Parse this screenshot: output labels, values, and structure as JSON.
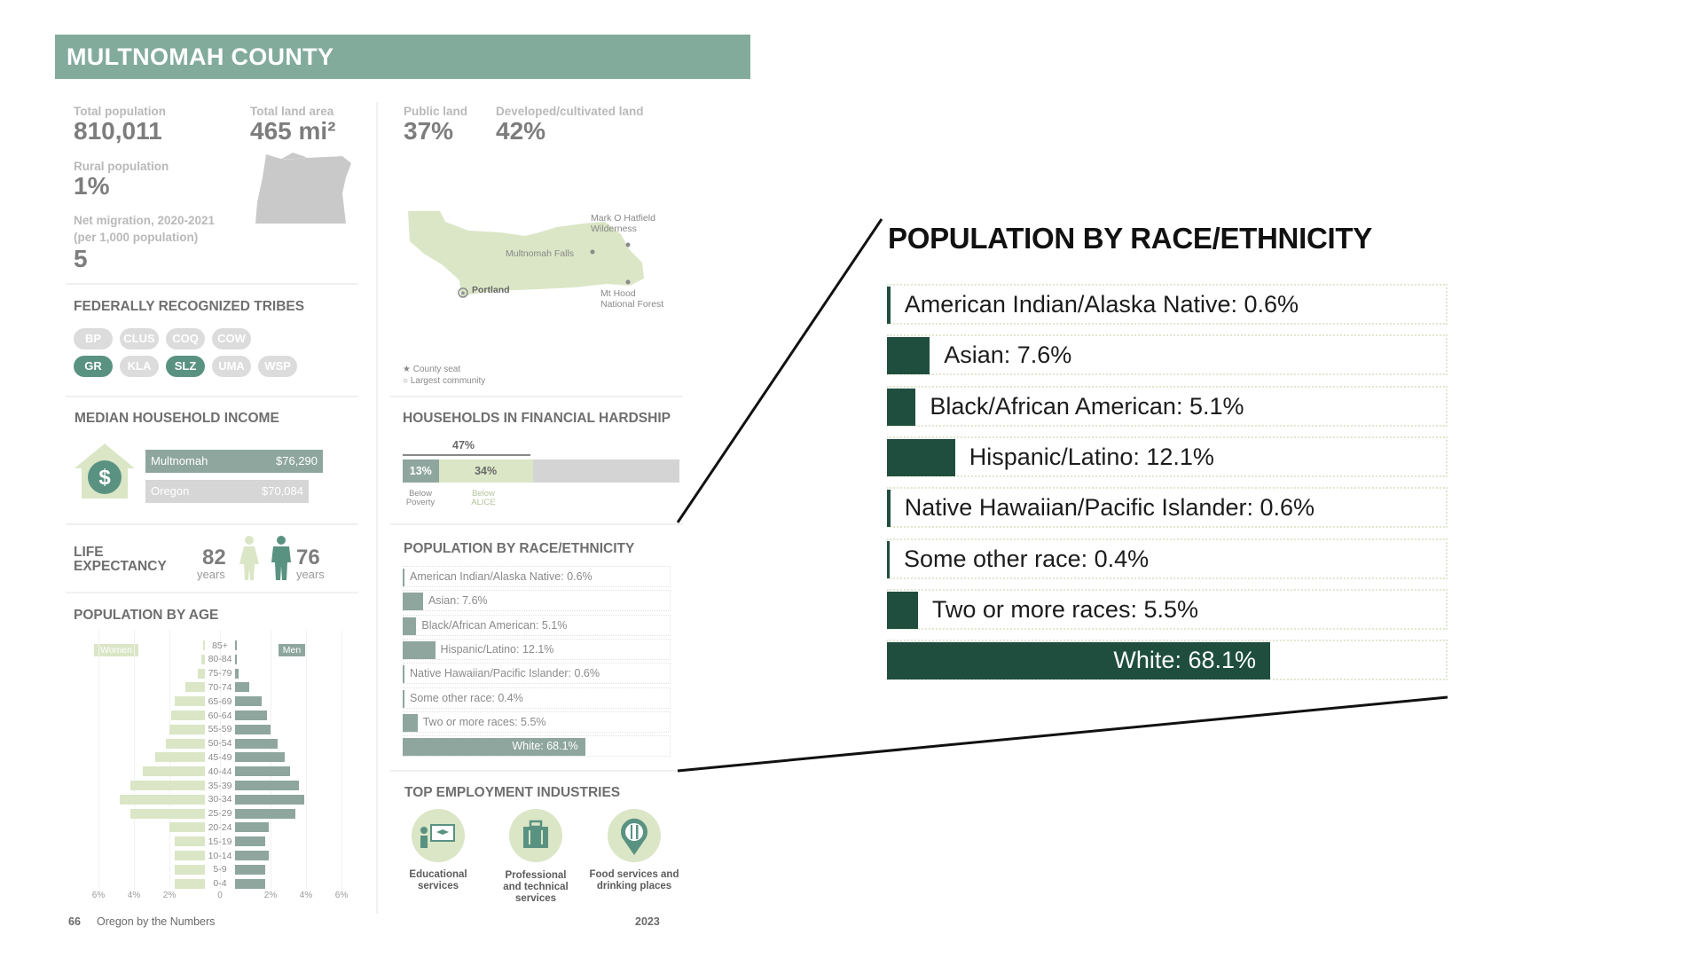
{
  "page": {
    "county_title": "MULTNOMAH COUNTY",
    "footer_page_number": "66",
    "footer_publication": "Oregon by the Numbers",
    "footer_year": "2023"
  },
  "stats": {
    "total_population_label": "Total population",
    "total_population_value": "810,011",
    "total_land_area_label": "Total land area",
    "total_land_area_value": "465 mi²",
    "rural_population_label": "Rural population",
    "rural_population_value": "1%",
    "net_migration_label_line1": "Net migration, 2020-2021",
    "net_migration_label_line2": "(per 1,000 population)",
    "net_migration_value": "5",
    "public_land_label": "Public land",
    "public_land_value": "37%",
    "developed_land_label": "Developed/cultivated land",
    "developed_land_value": "42%"
  },
  "map": {
    "label_wilderness": "Mark O Hatfield Wilderness",
    "label_falls": "Multnomah Falls",
    "label_portland": "Portland",
    "label_mthood_line1": "Mt Hood",
    "label_mthood_line2": "National Forest",
    "legend_county_seat": "County seat",
    "legend_largest_community": "Largest community"
  },
  "tribes": {
    "title": "FEDERALLY RECOGNIZED TRIBES",
    "items": [
      {
        "code": "BP",
        "highlighted": false
      },
      {
        "code": "CLUS",
        "highlighted": false
      },
      {
        "code": "COQ",
        "highlighted": false
      },
      {
        "code": "COW",
        "highlighted": false
      },
      {
        "code": "GR",
        "highlighted": true
      },
      {
        "code": "KLA",
        "highlighted": false
      },
      {
        "code": "SLZ",
        "highlighted": true
      },
      {
        "code": "UMA",
        "highlighted": false
      },
      {
        "code": "WSP",
        "highlighted": false
      }
    ]
  },
  "income": {
    "title": "MEDIAN HOUSEHOLD INCOME",
    "county_name": "Multnomah",
    "county_value": "$76,290",
    "state_name": "Oregon",
    "state_value": "$70,084"
  },
  "hardship": {
    "title": "HOUSEHOLDS IN FINANCIAL HARDSHIP",
    "total_label": "47%",
    "poverty_pct": 13,
    "poverty_label": "13%",
    "alice_pct": 34,
    "alice_label": "34%",
    "poverty_caption_1": "Below",
    "poverty_caption_2": "Poverty",
    "alice_caption_1": "Below",
    "alice_caption_2": "ALICE"
  },
  "life": {
    "title_line1": "LIFE",
    "title_line2": "EXPECTANCY",
    "women_value": "82",
    "women_unit": "years",
    "men_value": "76",
    "men_unit": "years"
  },
  "industries": {
    "title": "TOP EMPLOYMENT INDUSTRIES",
    "items": [
      {
        "line1": "Educational",
        "line2": "services",
        "line3": "",
        "icon": "education-icon"
      },
      {
        "line1": "Professional",
        "line2": "and technical",
        "line3": "services",
        "icon": "briefcase-icon"
      },
      {
        "line1": "Food services and",
        "line2": "drinking places",
        "line3": "",
        "icon": "utensils-icon"
      }
    ]
  },
  "zoom_title": "POPULATION BY RACE/ETHNICITY",
  "chart_data": [
    {
      "type": "bar",
      "title": "POPULATION BY AGE",
      "orientation": "horizontal-pyramid",
      "categories": [
        "85+",
        "80-84",
        "75-79",
        "70-74",
        "65-69",
        "60-64",
        "55-59",
        "50-54",
        "45-49",
        "40-44",
        "35-39",
        "30-34",
        "25-29",
        "20-24",
        "15-19",
        "10-14",
        "5-9",
        "0-4"
      ],
      "series": [
        {
          "name": "Women",
          "values": [
            0.1,
            0.2,
            0.4,
            1.1,
            1.7,
            1.9,
            2.0,
            2.2,
            2.8,
            3.5,
            4.2,
            4.8,
            4.2,
            2.0,
            1.7,
            1.7,
            1.7,
            1.7
          ],
          "color": "#dae6c6"
        },
        {
          "name": "Men",
          "values": [
            0.1,
            0.1,
            0.2,
            0.8,
            1.5,
            1.8,
            2.0,
            2.4,
            2.8,
            3.1,
            3.6,
            3.9,
            3.4,
            1.9,
            1.7,
            1.9,
            1.7,
            1.7
          ],
          "color": "#8ea69e"
        }
      ],
      "xticks": [
        "6%",
        "4%",
        "2%",
        "0",
        "2%",
        "4%",
        "6%"
      ],
      "xlim": [
        -6,
        6
      ]
    },
    {
      "type": "bar",
      "title": "POPULATION BY RACE/ETHNICITY",
      "orientation": "horizontal",
      "categories": [
        "American Indian/Alaska Native",
        "Asian",
        "Black/African American",
        "Hispanic/Latino",
        "Native Hawaiian/Pacific Islander",
        "Some other race",
        "Two or more races",
        "White"
      ],
      "labels": [
        "American Indian/Alaska Native: 0.6%",
        "Asian: 7.6%",
        "Black/African American: 5.1%",
        "Hispanic/Latino: 12.1%",
        "Native Hawaiian/Pacific Islander: 0.6%",
        "Some other race: 0.4%",
        "Two or more races: 5.5%",
        "White: 68.1%"
      ],
      "values": [
        0.6,
        7.6,
        5.1,
        12.1,
        0.6,
        0.4,
        5.5,
        68.1
      ],
      "xlim": [
        0,
        100
      ]
    }
  ]
}
